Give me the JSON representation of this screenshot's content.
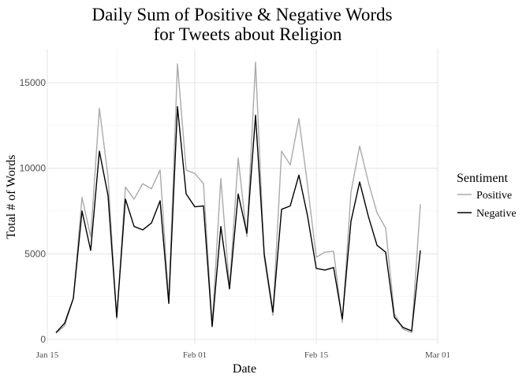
{
  "chart_data": {
    "type": "line",
    "title": [
      "Daily Sum of Positive & Negative Words",
      "for Tweets about Religion"
    ],
    "xlabel": "Date",
    "ylabel": "Total # of Words",
    "x_tick_labels": [
      "Jan 15",
      "Feb 01",
      "Feb 15",
      "Mar 01"
    ],
    "x_ticks": [
      "2022-01-15",
      "2022-02-01",
      "2022-02-15",
      "2022-03-01"
    ],
    "y_ticks": [
      0,
      5000,
      10000,
      15000
    ],
    "xlim": [
      "2022-01-15",
      "2022-03-01"
    ],
    "ylim": [
      0,
      16500
    ],
    "grid": true,
    "legend": {
      "title": "Sentiment",
      "position": "right"
    },
    "x": [
      "2022-01-16",
      "2022-01-17",
      "2022-01-18",
      "2022-01-19",
      "2022-01-20",
      "2022-01-21",
      "2022-01-22",
      "2022-01-23",
      "2022-01-24",
      "2022-01-25",
      "2022-01-26",
      "2022-01-27",
      "2022-01-28",
      "2022-01-29",
      "2022-01-30",
      "2022-01-31",
      "2022-02-01",
      "2022-02-02",
      "2022-02-03",
      "2022-02-04",
      "2022-02-05",
      "2022-02-06",
      "2022-02-07",
      "2022-02-08",
      "2022-02-09",
      "2022-02-10",
      "2022-02-11",
      "2022-02-12",
      "2022-02-13",
      "2022-02-14",
      "2022-02-15",
      "2022-02-16",
      "2022-02-17",
      "2022-02-18",
      "2022-02-19",
      "2022-02-20",
      "2022-02-21",
      "2022-02-22",
      "2022-02-23",
      "2022-02-24",
      "2022-02-25",
      "2022-02-26",
      "2022-02-27",
      "2022-02-28"
    ],
    "series": [
      {
        "name": "Positive",
        "color": "#aaaaaa",
        "values": [
          350,
          800,
          2400,
          8300,
          6000,
          13500,
          9500,
          1200,
          8900,
          8200,
          9100,
          8800,
          9900,
          2200,
          16100,
          9900,
          9700,
          9100,
          800,
          9400,
          3000,
          10600,
          6000,
          16200,
          4800,
          1400,
          11000,
          10200,
          12900,
          9000,
          4800,
          5100,
          5150,
          1000,
          8600,
          11300,
          9200,
          7400,
          6500,
          1500,
          600,
          400,
          7900,
          null
        ]
      },
      {
        "name": "Negative",
        "color": "#000000",
        "values": [
          400,
          950,
          2400,
          7500,
          5200,
          11000,
          8400,
          1300,
          8200,
          6600,
          6400,
          6800,
          8100,
          2100,
          13600,
          8500,
          7750,
          7800,
          750,
          6600,
          2950,
          8500,
          6200,
          13100,
          5000,
          1600,
          7600,
          7800,
          9600,
          7200,
          4150,
          4050,
          4200,
          1200,
          6900,
          9200,
          7200,
          5500,
          5100,
          1300,
          700,
          500,
          5200,
          null
        ]
      }
    ]
  }
}
